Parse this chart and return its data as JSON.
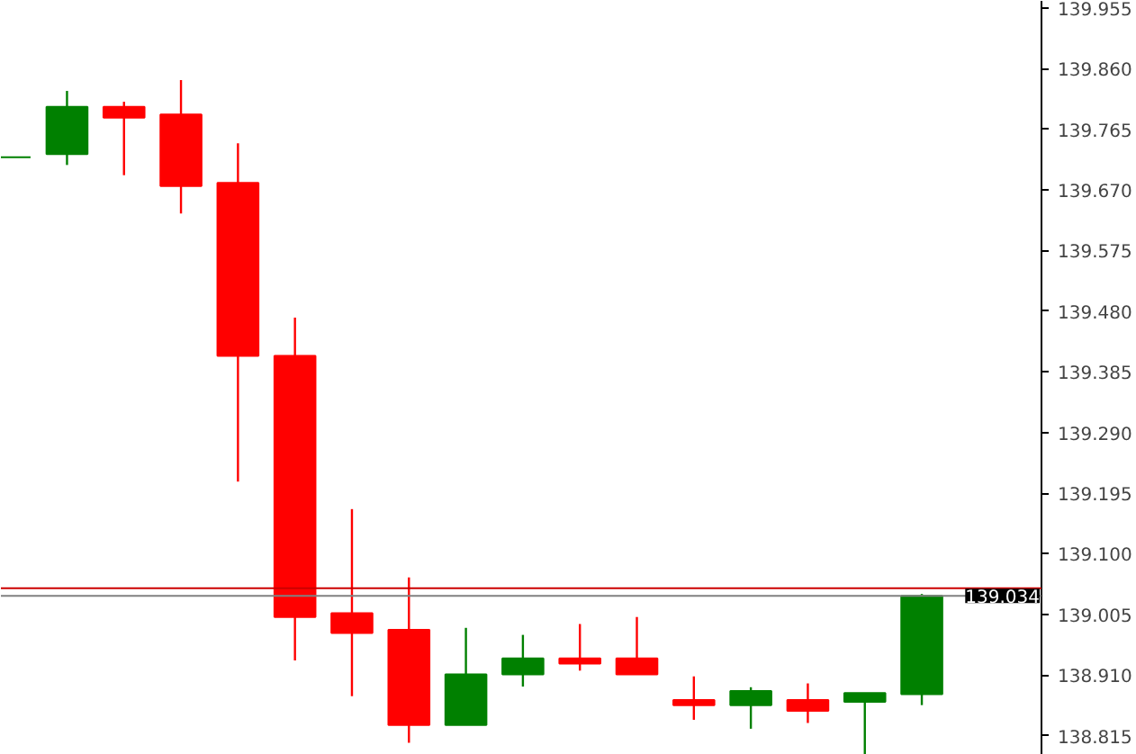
{
  "chart_data": {
    "type": "candlestick",
    "categories": [
      null,
      null,
      null,
      null,
      null,
      null,
      null,
      null,
      null,
      null,
      null,
      null,
      null,
      null,
      null,
      null,
      null
    ],
    "ohlc": [
      [
        139.721,
        139.721,
        139.721,
        139.721
      ],
      [
        139.726,
        139.825,
        139.709,
        139.8
      ],
      [
        139.8,
        139.808,
        139.693,
        139.783
      ],
      [
        139.788,
        139.842,
        139.633,
        139.676
      ],
      [
        139.681,
        139.743,
        139.213,
        139.41
      ],
      [
        139.41,
        139.47,
        138.933,
        139.001
      ],
      [
        139.007,
        139.17,
        138.877,
        138.976
      ],
      [
        138.981,
        139.063,
        138.804,
        138.832
      ],
      [
        138.832,
        138.984,
        138.832,
        138.911
      ],
      [
        138.911,
        138.973,
        138.892,
        138.936
      ],
      [
        138.936,
        138.99,
        138.917,
        138.928
      ],
      [
        138.936,
        139.001,
        138.911,
        138.911
      ],
      [
        138.871,
        138.908,
        138.84,
        138.863
      ],
      [
        138.863,
        138.891,
        138.826,
        138.885
      ],
      [
        138.871,
        138.897,
        138.835,
        138.854
      ],
      [
        138.868,
        138.882,
        138.785,
        138.882
      ],
      [
        138.88,
        139.037,
        138.863,
        139.034
      ]
    ],
    "colors": [
      "#008000",
      "#008000",
      "#ff0000",
      "#ff0000",
      "#ff0000",
      "#ff0000",
      "#ff0000",
      "#ff0000",
      "#008000",
      "#008000",
      "#ff0000",
      "#ff0000",
      "#ff0000",
      "#008000",
      "#ff0000",
      "#008000",
      "#008000"
    ],
    "ylim": [
      138.785,
      139.966
    ],
    "yticks": [
      139.955,
      {
        "value": 139.86,
        "label": "139.860"
      },
      139.765,
      {
        "value": 139.67,
        "label": "139.670"
      },
      139.575,
      {
        "value": 139.48,
        "label": "139.480"
      },
      139.385,
      {
        "value": 139.29,
        "label": "139.290"
      },
      139.195,
      {
        "value": 139.1,
        "label": "139.100"
      },
      139.005,
      {
        "value": 138.91,
        "label": "138.910"
      },
      138.815
    ],
    "ref_lines": [
      {
        "axis": "y",
        "value": 139.046,
        "label": null,
        "color": "#cc0000"
      },
      {
        "axis": "y",
        "value": 139.034,
        "label": "139.034",
        "color": "#808080"
      }
    ],
    "grid": false
  }
}
